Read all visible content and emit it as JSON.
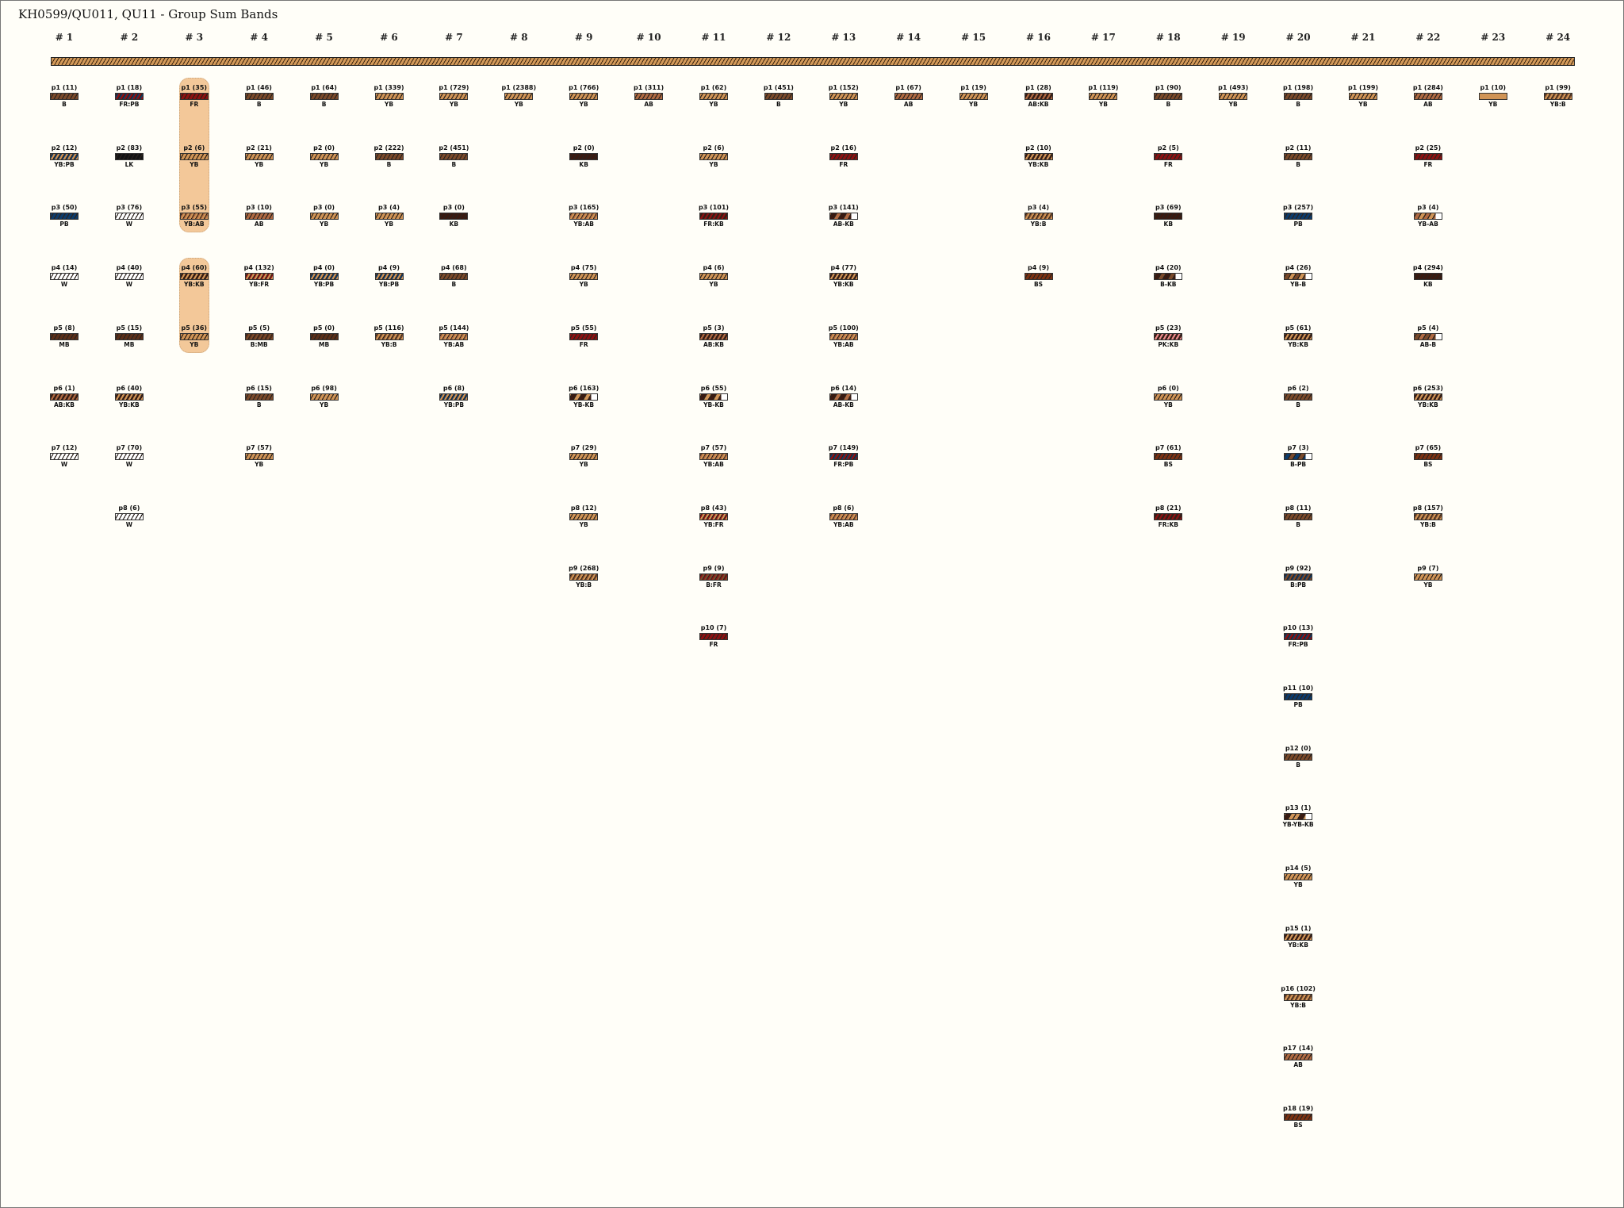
{
  "title": "KH0599/QU011, QU11 - Group Sum Bands",
  "colors": {
    "YB": "#d09456",
    "B": "#7b4a2a",
    "AB": "#b06a42",
    "KB": "#3b1a10",
    "FR": "#8c1212",
    "PB": "#0c3b6b",
    "W": "#ffffff",
    "MB": "#5c3019",
    "LK": "#141414",
    "BS": "#7d3212",
    "PK": "#ec8a8a",
    "highlight": "#f3c899",
    "background": "#fffef8"
  },
  "columns": [
    {
      "label": "# 1",
      "bands": [
        {
          "label": "p1 (11)",
          "type": "B"
        },
        {
          "label": "p2 (12)",
          "type": "YB:PB"
        },
        {
          "label": "p3 (50)",
          "type": "PB"
        },
        {
          "label": "p4 (14)",
          "type": "W"
        },
        {
          "label": "p5 (8)",
          "type": "MB"
        },
        {
          "label": "p6 (1)",
          "type": "AB:KB"
        },
        {
          "label": "p7 (12)",
          "type": "W"
        }
      ]
    },
    {
      "label": "# 2",
      "bands": [
        {
          "label": "p1 (18)",
          "type": "FR:PB"
        },
        {
          "label": "p2 (83)",
          "type": "LK"
        },
        {
          "label": "p3 (76)",
          "type": "W"
        },
        {
          "label": "p4 (40)",
          "type": "W"
        },
        {
          "label": "p5 (15)",
          "type": "MB"
        },
        {
          "label": "p6 (40)",
          "type": "YB:KB"
        },
        {
          "label": "p7 (70)",
          "type": "W"
        },
        {
          "label": "p8 (6)",
          "type": "W"
        }
      ]
    },
    {
      "label": "# 3",
      "highlights": [
        [
          0,
          2
        ],
        [
          3,
          4
        ]
      ],
      "bands": [
        {
          "label": "p1 (35)",
          "type": "FR"
        },
        {
          "label": "p2 (6)",
          "type": "YB"
        },
        {
          "label": "p3 (55)",
          "type": "YB:AB"
        },
        {
          "label": "p4 (60)",
          "type": "YB:KB"
        },
        {
          "label": "p5 (36)",
          "type": "YB"
        }
      ]
    },
    {
      "label": "# 4",
      "bands": [
        {
          "label": "p1 (46)",
          "type": "B"
        },
        {
          "label": "p2 (21)",
          "type": "YB"
        },
        {
          "label": "p3 (10)",
          "type": "AB"
        },
        {
          "label": "p4 (132)",
          "type": "YB:FR"
        },
        {
          "label": "p5 (5)",
          "type": "B:MB"
        },
        {
          "label": "p6 (15)",
          "type": "B"
        },
        {
          "label": "p7 (57)",
          "type": "YB"
        }
      ]
    },
    {
      "label": "# 5",
      "bands": [
        {
          "label": "p1 (64)",
          "type": "B"
        },
        {
          "label": "p2 (0)",
          "type": "YB"
        },
        {
          "label": "p3 (0)",
          "type": "YB"
        },
        {
          "label": "p4 (0)",
          "type": "YB:PB"
        },
        {
          "label": "p5 (0)",
          "type": "MB"
        },
        {
          "label": "p6 (98)",
          "type": "YB"
        }
      ]
    },
    {
      "label": "# 6",
      "bands": [
        {
          "label": "p1 (339)",
          "type": "YB"
        },
        {
          "label": "p2 (222)",
          "type": "B"
        },
        {
          "label": "p3 (4)",
          "type": "YB"
        },
        {
          "label": "p4 (9)",
          "type": "YB:PB"
        },
        {
          "label": "p5 (116)",
          "type": "YB:B"
        }
      ]
    },
    {
      "label": "# 7",
      "bands": [
        {
          "label": "p1 (729)",
          "type": "YB"
        },
        {
          "label": "p2 (451)",
          "type": "B"
        },
        {
          "label": "p3 (0)",
          "type": "KB"
        },
        {
          "label": "p4 (68)",
          "type": "B"
        },
        {
          "label": "p5 (144)",
          "type": "YB:AB"
        },
        {
          "label": "p6 (8)",
          "type": "YB:PB"
        }
      ]
    },
    {
      "label": "# 8",
      "bands": [
        {
          "label": "p1 (2388)",
          "type": "YB"
        }
      ]
    },
    {
      "label": "# 9",
      "bands": [
        {
          "label": "p1 (766)",
          "type": "YB"
        },
        {
          "label": "p2 (0)",
          "type": "KB"
        },
        {
          "label": "p3 (165)",
          "type": "YB:AB"
        },
        {
          "label": "p4 (75)",
          "type": "YB"
        },
        {
          "label": "p5 (55)",
          "type": "FR"
        },
        {
          "label": "p6 (163)",
          "type": "YB-KB"
        },
        {
          "label": "p7 (29)",
          "type": "YB"
        },
        {
          "label": "p8 (12)",
          "type": "YB"
        },
        {
          "label": "p9 (268)",
          "type": "YB:B"
        }
      ]
    },
    {
      "label": "# 10",
      "bands": [
        {
          "label": "p1 (311)",
          "type": "AB"
        }
      ]
    },
    {
      "label": "# 11",
      "bands": [
        {
          "label": "p1 (62)",
          "type": "YB"
        },
        {
          "label": "p2 (6)",
          "type": "YB"
        },
        {
          "label": "p3 (101)",
          "type": "FR:KB"
        },
        {
          "label": "p4 (6)",
          "type": "YB"
        },
        {
          "label": "p5 (3)",
          "type": "AB:KB"
        },
        {
          "label": "p6 (55)",
          "type": "YB-KB"
        },
        {
          "label": "p7 (57)",
          "type": "YB:AB"
        },
        {
          "label": "p8 (43)",
          "type": "YB:FR"
        },
        {
          "label": "p9 (9)",
          "type": "B:FR"
        },
        {
          "label": "p10 (7)",
          "type": "FR"
        }
      ]
    },
    {
      "label": "# 12",
      "bands": [
        {
          "label": "p1 (451)",
          "type": "B"
        }
      ]
    },
    {
      "label": "# 13",
      "bands": [
        {
          "label": "p1 (152)",
          "type": "YB"
        },
        {
          "label": "p2 (16)",
          "type": "FR"
        },
        {
          "label": "p3 (141)",
          "type": "AB-KB"
        },
        {
          "label": "p4 (77)",
          "type": "YB:KB"
        },
        {
          "label": "p5 (100)",
          "type": "YB:AB"
        },
        {
          "label": "p6 (14)",
          "type": "AB-KB"
        },
        {
          "label": "p7 (149)",
          "type": "FR:PB"
        },
        {
          "label": "p8 (6)",
          "type": "YB:AB"
        }
      ]
    },
    {
      "label": "# 14",
      "bands": [
        {
          "label": "p1 (67)",
          "type": "AB"
        }
      ]
    },
    {
      "label": "# 15",
      "bands": [
        {
          "label": "p1 (19)",
          "type": "YB"
        }
      ]
    },
    {
      "label": "# 16",
      "bands": [
        {
          "label": "p1 (28)",
          "type": "AB:KB"
        },
        {
          "label": "p2 (10)",
          "type": "YB:KB"
        },
        {
          "label": "p3 (4)",
          "type": "YB:B"
        },
        {
          "label": "p4 (9)",
          "type": "BS"
        }
      ]
    },
    {
      "label": "# 17",
      "bands": [
        {
          "label": "p1 (119)",
          "type": "YB"
        }
      ]
    },
    {
      "label": "# 18",
      "bands": [
        {
          "label": "p1 (90)",
          "type": "B"
        },
        {
          "label": "p2 (5)",
          "type": "FR"
        },
        {
          "label": "p3 (69)",
          "type": "KB"
        },
        {
          "label": "p4 (20)",
          "type": "B-KB"
        },
        {
          "label": "p5 (23)",
          "type": "PK:KB"
        },
        {
          "label": "p6 (0)",
          "type": "YB"
        },
        {
          "label": "p7 (61)",
          "type": "BS"
        },
        {
          "label": "p8 (21)",
          "type": "FR:KB"
        }
      ]
    },
    {
      "label": "# 19",
      "bands": [
        {
          "label": "p1 (493)",
          "type": "YB"
        }
      ]
    },
    {
      "label": "# 20",
      "bands": [
        {
          "label": "p1 (198)",
          "type": "B"
        },
        {
          "label": "p2 (11)",
          "type": "B"
        },
        {
          "label": "p3 (257)",
          "type": "PB"
        },
        {
          "label": "p4 (26)",
          "type": "YB-B"
        },
        {
          "label": "p5 (61)",
          "type": "YB:KB"
        },
        {
          "label": "p6 (2)",
          "type": "B"
        },
        {
          "label": "p7 (3)",
          "type": "B-PB"
        },
        {
          "label": "p8 (11)",
          "type": "B"
        },
        {
          "label": "p9 (92)",
          "type": "B:PB"
        },
        {
          "label": "p10 (13)",
          "type": "FR:PB"
        },
        {
          "label": "p11 (10)",
          "type": "PB"
        },
        {
          "label": "p12 (0)",
          "type": "B"
        },
        {
          "label": "p13 (1)",
          "type": "YB-YB-KB"
        },
        {
          "label": "p14 (5)",
          "type": "YB"
        },
        {
          "label": "p15 (1)",
          "type": "YB:KB"
        },
        {
          "label": "p16 (102)",
          "type": "YB:B"
        },
        {
          "label": "p17 (14)",
          "type": "AB"
        },
        {
          "label": "p18 (19)",
          "type": "BS"
        }
      ]
    },
    {
      "label": "# 21",
      "bands": [
        {
          "label": "p1 (199)",
          "type": "YB"
        }
      ]
    },
    {
      "label": "# 22",
      "bands": [
        {
          "label": "p1 (284)",
          "type": "AB"
        },
        {
          "label": "p2 (25)",
          "type": "FR"
        },
        {
          "label": "p3 (4)",
          "type": "YB-AB"
        },
        {
          "label": "p4 (294)",
          "type": "KB"
        },
        {
          "label": "p5 (4)",
          "type": "AB-B"
        },
        {
          "label": "p6 (253)",
          "type": "YB:KB"
        },
        {
          "label": "p7 (65)",
          "type": "BS"
        },
        {
          "label": "p8 (157)",
          "type": "YB:B"
        },
        {
          "label": "p9 (7)",
          "type": "YB"
        }
      ]
    },
    {
      "label": "# 23",
      "bands": [
        {
          "label": "p1 (10)",
          "type": "YB",
          "plain": true
        }
      ]
    },
    {
      "label": "# 24",
      "bands": [
        {
          "label": "p1 (99)",
          "type": "YB:B"
        }
      ]
    }
  ]
}
